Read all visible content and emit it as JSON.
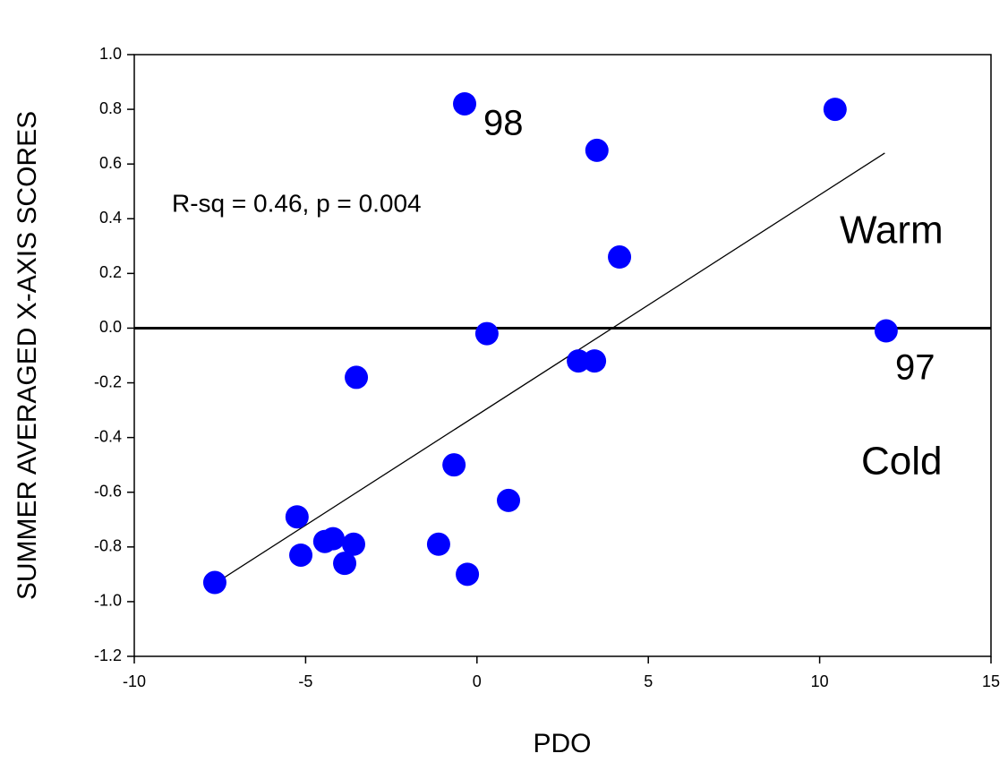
{
  "chart_data": {
    "type": "scatter",
    "x_label": "PDO",
    "y_label": "SUMMER AVERAGED X-AXIS SCORES",
    "series": [
      {
        "color": "#0000ff",
        "x": [
          -0.36,
          10.45,
          3.5,
          4.16,
          0.29,
          11.94,
          2.96,
          3.43,
          -3.52,
          -0.67,
          0.92,
          -5.25,
          -5.14,
          -4.44,
          -4.2,
          -3.6,
          -3.86,
          -1.12,
          -0.28,
          -7.65
        ],
        "values": [
          0.82,
          0.8,
          0.65,
          0.26,
          -0.02,
          -0.01,
          -0.12,
          -0.12,
          -0.18,
          -0.5,
          -0.63,
          -0.69,
          -0.83,
          -0.78,
          -0.77,
          -0.79,
          -0.86,
          -0.79,
          -0.9,
          -0.93
        ]
      }
    ],
    "trend_line": {
      "x": [
        -7.6,
        11.9
      ],
      "values": [
        -0.93,
        0.64
      ]
    },
    "hline": 0,
    "annotations": [
      "R-sq = 0.46, p = 0.004",
      "98",
      "97",
      "Warm",
      "Cold"
    ],
    "xlim": [
      -10,
      15
    ],
    "xticks": [
      -10,
      -5,
      0,
      5,
      10,
      15
    ],
    "ylim": [
      -1.2,
      1.0
    ],
    "yticks": [
      {
        "value": -1.2,
        "label": "-1.2"
      },
      {
        "value": -1.0,
        "label": "-1.0"
      },
      -0.8,
      -0.6,
      -0.4,
      -0.2,
      {
        "value": 0,
        "label": "0.0"
      },
      0.2,
      0.4,
      0.6,
      0.8,
      {
        "value": 1.0,
        "label": "1.0"
      }
    ]
  }
}
